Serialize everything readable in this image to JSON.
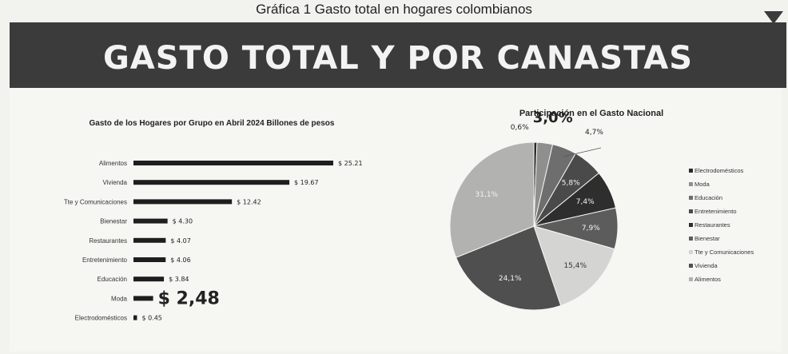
{
  "caption": "Gráfica 1 Gasto total en hogares colombianos",
  "banner_title": "GASTO TOTAL Y POR CANASTAS",
  "chart_data": [
    {
      "type": "bar",
      "orientation": "horizontal",
      "title": "Gasto de los Hogares por Grupo en Abril 2024 Billones de pesos",
      "categories": [
        "Alimentos",
        "Vivienda",
        "Tte y Comunicaciones",
        "Bienestar",
        "Restaurantes",
        "Entretenimiento",
        "Educación",
        "Moda",
        "Electrodomésticos"
      ],
      "values": [
        25.21,
        19.67,
        12.42,
        4.3,
        4.07,
        4.06,
        3.84,
        2.48,
        0.45
      ],
      "labels": [
        "$ 25.21",
        "$ 19.67",
        "$ 12.42",
        "$ 4.30",
        "$ 4.07",
        "$ 4.06",
        "$ 3.84",
        "$ 2,48",
        "$ 0.45"
      ],
      "highlighted_label_index": 7,
      "bar_color": "#1e1e1e",
      "xlim": [
        0,
        25.21
      ]
    },
    {
      "type": "pie",
      "title": "Participación en el Gasto Nacional",
      "legend_position": "right",
      "slices": [
        {
          "name": "Electrodomésticos",
          "value": 0.6,
          "label": "0,6%",
          "color": "#2a2a2a"
        },
        {
          "name": "Moda",
          "value": 3.0,
          "label": "3,0%",
          "color": "#8f8f8f"
        },
        {
          "name": "Educación",
          "value": 4.7,
          "label": "4,7%",
          "color": "#6e6e6e"
        },
        {
          "name": "Entretenimiento",
          "value": 5.8,
          "label": "5,8%",
          "color": "#4a4a4a"
        },
        {
          "name": "Restaurantes",
          "value": 7.4,
          "label": "7,4%",
          "color": "#2e2e2e"
        },
        {
          "name": "Bienestar",
          "value": 7.9,
          "label": "7,9%",
          "color": "#5c5c5c"
        },
        {
          "name": "Tte y Comunicaciones",
          "value": 15.4,
          "label": "15,4%",
          "color": "#d4d4d2"
        },
        {
          "name": "Vivienda",
          "value": 24.1,
          "label": "24,1%",
          "color": "#4f4f4f"
        },
        {
          "name": "Alimentos",
          "value": 31.1,
          "label": "31,1%",
          "color": "#b2b2b0"
        }
      ]
    }
  ]
}
